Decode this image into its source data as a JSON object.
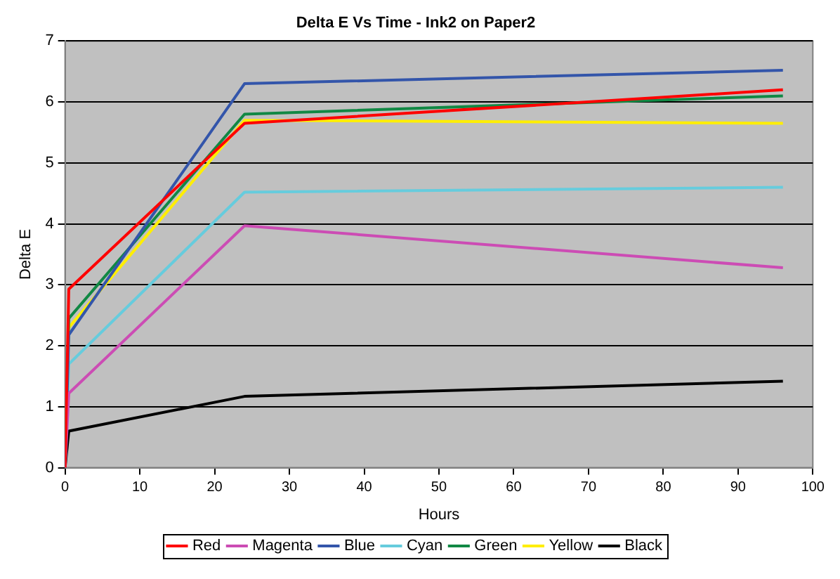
{
  "chart_data": {
    "type": "line",
    "title": "Delta E Vs Time - Ink2 on Paper2",
    "xlabel": "Hours",
    "ylabel": "Delta E",
    "x": [
      0,
      0.5,
      24,
      96
    ],
    "series": [
      {
        "name": "Red",
        "color": "#ff0000",
        "values": [
          0,
          2.93,
          5.65,
          6.2
        ]
      },
      {
        "name": "Magenta",
        "color": "#cc4cb4",
        "values": [
          0,
          1.22,
          3.97,
          3.28
        ]
      },
      {
        "name": "Blue",
        "color": "#3355aa",
        "values": [
          0,
          2.18,
          6.3,
          6.52
        ]
      },
      {
        "name": "Cyan",
        "color": "#66ccdd",
        "values": [
          0,
          1.7,
          4.52,
          4.6
        ]
      },
      {
        "name": "Green",
        "color": "#118844",
        "values": [
          0,
          2.45,
          5.8,
          6.1
        ]
      },
      {
        "name": "Yellow",
        "color": "#ffee00",
        "values": [
          0,
          2.3,
          5.7,
          5.65
        ]
      },
      {
        "name": "Black",
        "color": "#000000",
        "values": [
          0,
          0.6,
          1.17,
          1.42
        ]
      }
    ],
    "xlim": [
      0,
      100
    ],
    "xticks": [
      0,
      10,
      20,
      30,
      40,
      50,
      60,
      70,
      80,
      90,
      100
    ],
    "ylim": [
      0,
      7
    ],
    "yticks": [
      0,
      1,
      2,
      3,
      4,
      5,
      6,
      7
    ],
    "grid": "y",
    "legend": "bottom",
    "marker": "none",
    "line_style": "solid"
  }
}
